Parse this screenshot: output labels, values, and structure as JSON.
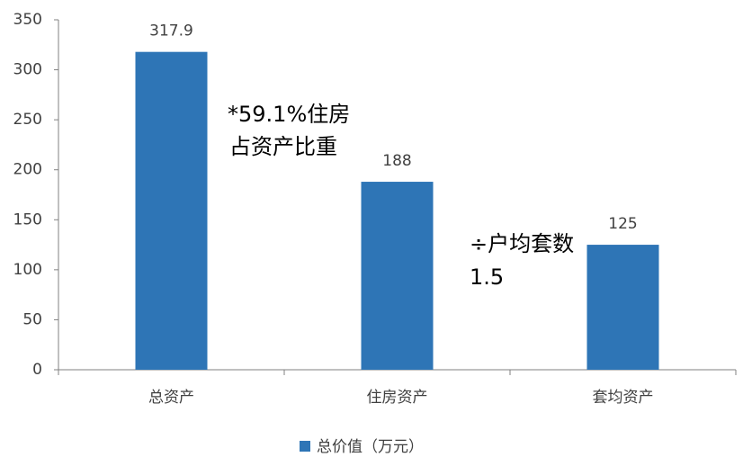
{
  "chart_data": {
    "type": "bar",
    "categories": [
      "总资产",
      "住房资产",
      "套均资产"
    ],
    "series": [
      {
        "name": "总价值（万元）",
        "color": "#2e75b6",
        "values": [
          317.9,
          188,
          125
        ]
      }
    ],
    "ylim": [
      0,
      350
    ],
    "yticks": [
      0,
      50,
      100,
      150,
      200,
      250,
      300,
      350
    ],
    "annotations": [
      {
        "lines": [
          "*59.1%住房",
          "占资产比重"
        ]
      },
      {
        "lines": [
          "÷户均套数",
          "1.5"
        ]
      }
    ]
  }
}
